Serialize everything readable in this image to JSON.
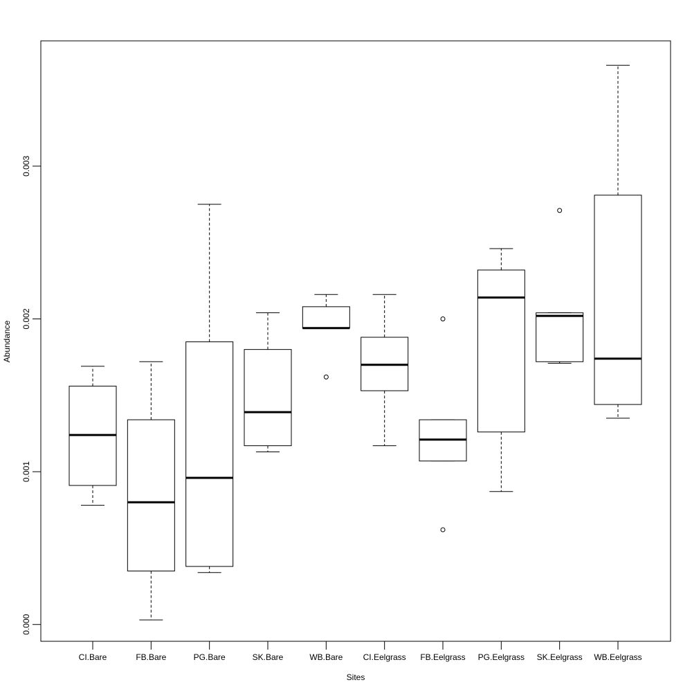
{
  "chart_data": {
    "type": "boxplot",
    "title": "",
    "xlabel": "Sites",
    "ylabel": "Abundance",
    "ylim": [
      -0.00011,
      0.00382
    ],
    "yticks": [
      0.0,
      0.001,
      0.002,
      0.003
    ],
    "ytick_labels": [
      "0.000",
      "0.001",
      "0.002",
      "0.003"
    ],
    "grid": false,
    "legend": "none",
    "categories": [
      "CI.Bare",
      "FB.Bare",
      "PG.Bare",
      "SK.Bare",
      "WB.Bare",
      "CI.Eelgrass",
      "FB.Eelgrass",
      "PG.Eelgrass",
      "SK.Eelgrass",
      "WB.Eelgrass"
    ],
    "boxes": [
      {
        "whisker_low": 0.00078,
        "q1": 0.00091,
        "median": 0.00124,
        "q3": 0.00156,
        "whisker_high": 0.00169,
        "outliers": []
      },
      {
        "whisker_low": 3e-05,
        "q1": 0.00035,
        "median": 0.0008,
        "q3": 0.00134,
        "whisker_high": 0.00172,
        "outliers": []
      },
      {
        "whisker_low": 0.00034,
        "q1": 0.00038,
        "median": 0.00096,
        "q3": 0.00185,
        "whisker_high": 0.00275,
        "outliers": []
      },
      {
        "whisker_low": 0.00113,
        "q1": 0.00117,
        "median": 0.00139,
        "q3": 0.0018,
        "whisker_high": 0.00204,
        "outliers": []
      },
      {
        "whisker_low": 0.00194,
        "q1": 0.00194,
        "median": 0.00194,
        "q3": 0.00208,
        "whisker_high": 0.00216,
        "outliers": [
          0.00162
        ]
      },
      {
        "whisker_low": 0.00117,
        "q1": 0.00153,
        "median": 0.0017,
        "q3": 0.00188,
        "whisker_high": 0.00216,
        "outliers": []
      },
      {
        "whisker_low": 0.00107,
        "q1": 0.00107,
        "median": 0.00121,
        "q3": 0.00134,
        "whisker_high": 0.00134,
        "outliers": [
          0.002,
          0.00062
        ]
      },
      {
        "whisker_low": 0.00087,
        "q1": 0.00126,
        "median": 0.00214,
        "q3": 0.00232,
        "whisker_high": 0.00246,
        "outliers": []
      },
      {
        "whisker_low": 0.00171,
        "q1": 0.00172,
        "median": 0.00202,
        "q3": 0.00204,
        "whisker_high": 0.00204,
        "outliers": [
          0.00271
        ]
      },
      {
        "whisker_low": 0.00135,
        "q1": 0.00144,
        "median": 0.00174,
        "q3": 0.00281,
        "whisker_high": 0.00366,
        "outliers": []
      }
    ]
  }
}
